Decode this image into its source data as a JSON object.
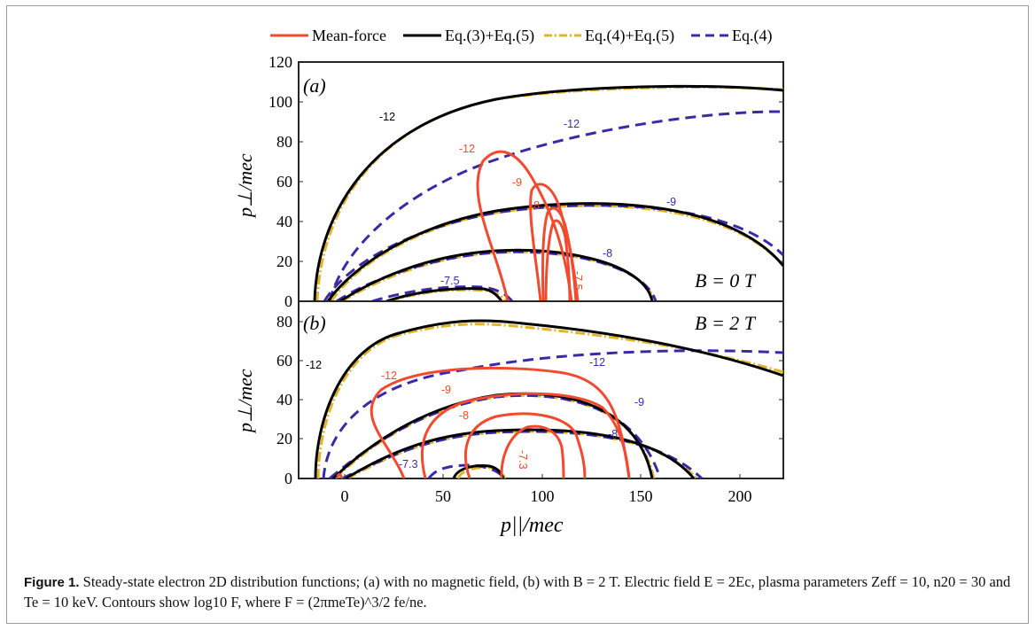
{
  "legend": {
    "mean_force": "Mean-force",
    "eq35": "Eq.(3)+Eq.(5)",
    "eq45": "Eq.(4)+Eq.(5)",
    "eq4": "Eq.(4)"
  },
  "colors": {
    "mean_force": "#f24a2e",
    "eq35": "#000000",
    "eq45": "#e0b52a",
    "eq4": "#3a2aa8"
  },
  "panel_a": {
    "tag": "(a)",
    "field_label": "B = 0 T",
    "ylabel": "p⊥/mec",
    "yticks": [
      "0",
      "20",
      "40",
      "60",
      "80",
      "100",
      "120"
    ],
    "contour_labels": {
      "black": [
        "-12"
      ],
      "blue": [
        "-12",
        "-9",
        "-8",
        "-7.5"
      ],
      "red": [
        "-12",
        "-9",
        "-8",
        "-7.5"
      ]
    }
  },
  "panel_b": {
    "tag": "(b)",
    "field_label": "B = 2 T",
    "ylabel": "p⊥/mec",
    "yticks": [
      "0",
      "20",
      "40",
      "60",
      "80"
    ],
    "contour_labels": {
      "black": [
        "-12"
      ],
      "blue": [
        "-12",
        "-9",
        "-8",
        "-7.3"
      ],
      "red": [
        "-12",
        "-9",
        "-8",
        "-7.3"
      ]
    }
  },
  "xaxis": {
    "label": "p||/mec",
    "ticks": [
      "0",
      "50",
      "100",
      "150",
      "200"
    ]
  },
  "caption": {
    "label": "Figure 1.",
    "text": "Steady-state electron 2D distribution functions; (a) with no magnetic field, (b) with B = 2 T. Electric field E = 2Ec, plasma parameters Zeff = 10, n20 = 30 and Te = 10 keV. Contours show log10 F, where F = (2πmeTe)^3/2 fe/ne."
  }
}
